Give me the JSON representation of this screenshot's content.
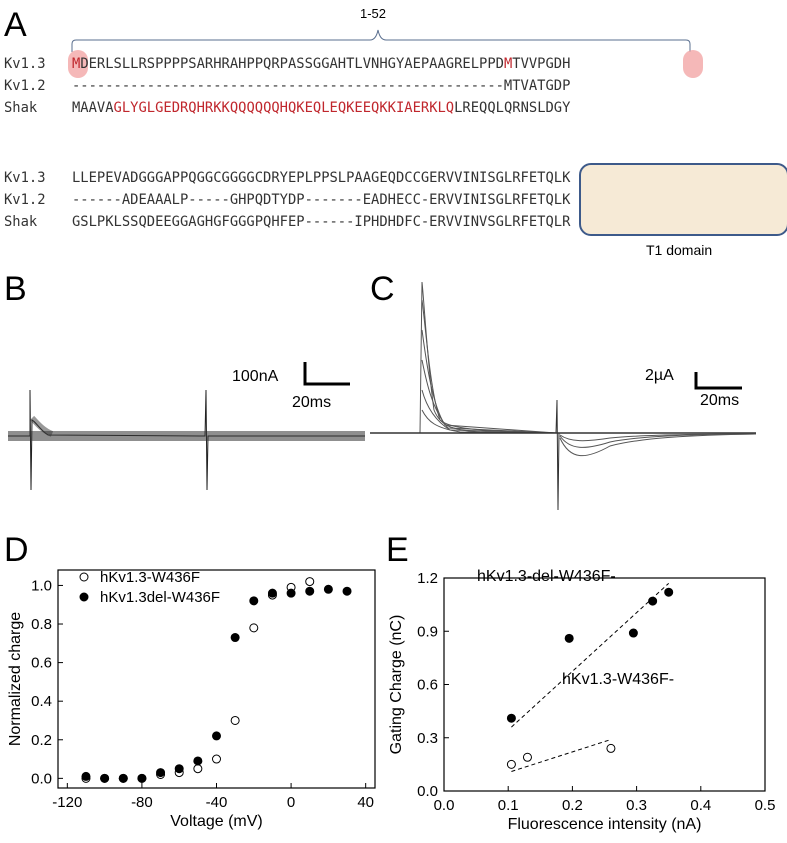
{
  "panels": {
    "a": "A",
    "b": "B",
    "c": "C",
    "d": "D",
    "e": "E"
  },
  "panel_a": {
    "bracket_label": "1-52",
    "block1": [
      {
        "name": "Kv1.3",
        "parts": [
          {
            "t": "M",
            "c": "red"
          },
          {
            "t": "DERLSLLRSPPPPSARHRAHPPQRPASSGGAHTLVNHGYAEPAAGRELPPD",
            "c": ""
          },
          {
            "t": "M",
            "c": "red"
          },
          {
            "t": "TVVPGDH",
            "c": ""
          }
        ]
      },
      {
        "name": "Kv1.2",
        "parts": [
          {
            "t": "----------------------------------------------------MTVATGDP",
            "c": ""
          }
        ]
      },
      {
        "name": "Shak",
        "parts": [
          {
            "t": "MAAVA",
            "c": ""
          },
          {
            "t": "GLYGLGEDRQHRKKQQQQQQHQKEQLEQKEEQKKIAERKLQ",
            "c": "red"
          },
          {
            "t": "LREQQLQRNSLDGY",
            "c": ""
          }
        ]
      }
    ],
    "block2": [
      {
        "name": "Kv1.3",
        "parts": [
          {
            "t": "LLEPEVADGGGAPPQGGCGGGGCDRYEPLPPSLPAAGEQDCCGERVVINISGLRFETQLK",
            "c": ""
          }
        ]
      },
      {
        "name": "Kv1.2",
        "parts": [
          {
            "t": "------ADEAAALP-----GHPQDTYDP-------EADHECC-ERVVINISGLRFETQLK",
            "c": ""
          }
        ]
      },
      {
        "name": "Shak",
        "parts": [
          {
            "t": "GSLPKLSSQDEEGGAGHGFGGGPQHFEP------IPHDHDFC-ERVVINVSGLRFETQLR",
            "c": ""
          }
        ]
      }
    ],
    "t1_label": "T1 domain"
  },
  "panel_b": {
    "scale_current": "100nA",
    "scale_time": "20ms"
  },
  "panel_c": {
    "scale_current": "2µA",
    "scale_time": "20ms"
  },
  "chart_data": [
    {
      "type": "scatter",
      "panel": "D",
      "xlabel": "Voltage (mV)",
      "ylabel": "Normalized charge",
      "xlim": [
        -125,
        45
      ],
      "ylim": [
        -0.05,
        1.08
      ],
      "xticks": [
        -120,
        -80,
        -40,
        0,
        40
      ],
      "yticks": [
        0.0,
        0.2,
        0.4,
        0.6,
        0.8,
        1.0
      ],
      "xtick_labels": [
        "-120",
        "-80",
        "-40",
        "0",
        "40"
      ],
      "ytick_labels": [
        "0.0",
        "0.2",
        "0.4",
        "0.6",
        "0.8",
        "1.0"
      ],
      "legend_position": "top-left",
      "series": [
        {
          "name": "hKv1.3-W436F",
          "marker": "open",
          "x": [
            -110,
            -100,
            -90,
            -80,
            -70,
            -60,
            -50,
            -40,
            -30,
            -20,
            -10,
            0,
            10
          ],
          "y": [
            0.0,
            0.0,
            0.0,
            0.0,
            0.02,
            0.03,
            0.05,
            0.1,
            0.3,
            0.78,
            0.95,
            0.99,
            1.02
          ]
        },
        {
          "name": "hKv1.3del-W436F",
          "marker": "filled",
          "x": [
            -110,
            -100,
            -90,
            -80,
            -70,
            -60,
            -50,
            -40,
            -30,
            -20,
            -10,
            0,
            10,
            20,
            30
          ],
          "y": [
            0.01,
            0.0,
            0.0,
            0.0,
            0.03,
            0.05,
            0.09,
            0.22,
            0.73,
            0.92,
            0.96,
            0.96,
            0.97,
            0.98,
            0.97
          ]
        }
      ]
    },
    {
      "type": "scatter",
      "panel": "E",
      "xlabel": "Fluorescence intensity (nA)",
      "ylabel": "Gating Charge (nC)",
      "xlim": [
        0.0,
        0.5
      ],
      "ylim": [
        0.0,
        1.2
      ],
      "xticks": [
        0.0,
        0.1,
        0.2,
        0.3,
        0.4,
        0.5
      ],
      "yticks": [
        0.0,
        0.3,
        0.6,
        0.9,
        1.2
      ],
      "xtick_labels": [
        "0.0",
        "0.1",
        "0.2",
        "0.3",
        "0.4",
        "0.5"
      ],
      "ytick_labels": [
        "0.0",
        "0.3",
        "0.6",
        "0.9",
        "1.2"
      ],
      "series": [
        {
          "name": "hKv1.3-del-W436F-",
          "marker": "filled",
          "x": [
            0.105,
            0.195,
            0.295,
            0.325,
            0.35
          ],
          "y": [
            0.41,
            0.86,
            0.89,
            1.07,
            1.12
          ],
          "fit": [
            [
              0.105,
              0.36
            ],
            [
              0.35,
              1.17
            ]
          ]
        },
        {
          "name": "hKv1.3-W436F-",
          "marker": "open",
          "x": [
            0.105,
            0.13,
            0.26
          ],
          "y": [
            0.15,
            0.19,
            0.24
          ],
          "fit": [
            [
              0.105,
              0.11
            ],
            [
              0.26,
              0.29
            ]
          ]
        }
      ]
    }
  ]
}
